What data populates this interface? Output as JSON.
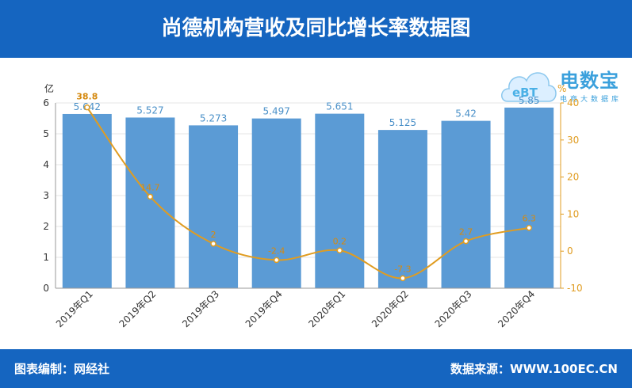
{
  "header": {
    "title": "尚德机构营收及同比增长率数据图"
  },
  "footer": {
    "editor": "图表编制：网经社",
    "source": "数据来源：WWW.100EC.CN"
  },
  "logo": {
    "text": "电数宝",
    "subtitle": "电商大数据库",
    "icon": "cloud-ebt-icon"
  },
  "colors": {
    "header": "#1565c0",
    "bar": "#5b9bd5",
    "line": "#e09c20"
  },
  "chart_data": {
    "type": "bar+line",
    "categories": [
      "2019年Q1",
      "2019年Q2",
      "2019年Q3",
      "2019年Q4",
      "2020年Q1",
      "2020年Q2",
      "2020年Q3",
      "2020年Q4"
    ],
    "series": [
      {
        "name": "",
        "type": "bar",
        "axis": "left",
        "values": [
          5.642,
          5.527,
          5.273,
          5.497,
          5.651,
          5.125,
          5.42,
          5.85
        ]
      },
      {
        "name": "",
        "type": "line",
        "axis": "right",
        "values": [
          38.8,
          14.7,
          2,
          -2.4,
          0.2,
          -7.3,
          2.7,
          6.3
        ]
      }
    ],
    "ylabel_left": "亿",
    "ylabel_right": "%",
    "ylim_left": [
      0,
      6
    ],
    "yticks_left": [
      0,
      1,
      2,
      3,
      4,
      5,
      6
    ],
    "ylim_right": [
      -10,
      40
    ],
    "yticks_right": [
      -10,
      0,
      10,
      20,
      30,
      40
    ],
    "grid": true,
    "legend": "none"
  }
}
